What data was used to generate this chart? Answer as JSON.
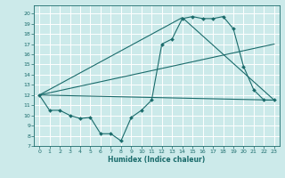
{
  "xlabel": "Humidex (Indice chaleur)",
  "bg_color": "#cceaea",
  "grid_color": "#ffffff",
  "line_color": "#1a6b6b",
  "xlim": [
    -0.5,
    23.5
  ],
  "ylim": [
    7,
    20.8
  ],
  "yticks": [
    7,
    8,
    9,
    10,
    11,
    12,
    13,
    14,
    15,
    16,
    17,
    18,
    19,
    20
  ],
  "xticks": [
    0,
    1,
    2,
    3,
    4,
    5,
    6,
    7,
    8,
    9,
    10,
    11,
    12,
    13,
    14,
    15,
    16,
    17,
    18,
    19,
    20,
    21,
    22,
    23
  ],
  "lines": [
    {
      "x": [
        0,
        1,
        2,
        3,
        4,
        5,
        6,
        7,
        8,
        9,
        10,
        11,
        12,
        13,
        14,
        15,
        16,
        17,
        18,
        19,
        20,
        21,
        22,
        23
      ],
      "y": [
        12,
        10.5,
        10.5,
        10,
        9.7,
        9.8,
        8.2,
        8.2,
        7.5,
        9.8,
        10.5,
        11.5,
        17.0,
        17.5,
        19.5,
        19.7,
        19.5,
        19.5,
        19.7,
        18.5,
        14.8,
        12.5,
        11.5,
        11.5
      ],
      "marker": true
    },
    {
      "x": [
        0,
        14,
        23
      ],
      "y": [
        12,
        19.6,
        11.5
      ],
      "marker": false
    },
    {
      "x": [
        0,
        23
      ],
      "y": [
        12,
        17.0
      ],
      "marker": false
    },
    {
      "x": [
        0,
        23
      ],
      "y": [
        12,
        11.5
      ],
      "marker": false
    }
  ]
}
